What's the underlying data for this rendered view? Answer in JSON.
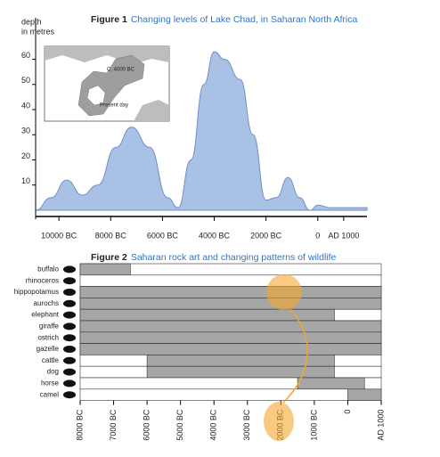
{
  "chart_data": [
    {
      "type": "area",
      "title_label": "Figure 1",
      "title": "Changing levels of Lake Chad, in Saharan North Africa",
      "ylabel": [
        "depth",
        "in metres"
      ],
      "annotations": [
        "C. 4000 BC",
        "Present day"
      ],
      "x": [
        -10900,
        -10300,
        -9700,
        -9100,
        -8500,
        -7800,
        -7200,
        -6500,
        -5800,
        -5400,
        -4900,
        -4400,
        -4000,
        -3600,
        -3000,
        -2500,
        -2000,
        -1600,
        -1150,
        -700,
        -300,
        0,
        500,
        1000,
        1900
      ],
      "values": [
        0,
        5,
        12,
        6,
        10,
        25,
        33,
        25,
        5,
        1,
        20,
        50,
        63,
        60,
        52,
        30,
        4,
        5,
        13,
        5,
        0,
        2,
        1,
        1,
        1
      ],
      "color": "#aac1e6",
      "line_color": "#6f8fc8",
      "xlim": [
        -10900,
        1900
      ],
      "xticks": [
        {
          "value": -10000,
          "label": "10000 BC"
        },
        {
          "value": -8000,
          "label": "8000 BC"
        },
        {
          "value": -6000,
          "label": "6000 BC"
        },
        {
          "value": -4000,
          "label": "4000 BC"
        },
        {
          "value": -2000,
          "label": "2000 BC"
        },
        0,
        {
          "value": 1000,
          "label": "AD 1000"
        }
      ],
      "ylim": [
        -2.5,
        68
      ],
      "yticks": [
        10,
        20,
        30,
        40,
        50,
        60
      ]
    },
    {
      "type": "range_bar",
      "title_label": "Figure 2",
      "title": "Saharan rock art and changing patterns of wildlife",
      "categories": [
        "buffalo",
        "rhinoceros",
        "hippopotamus",
        "aurochs",
        "elephant",
        "giraffe",
        "ostrich",
        "gazelle",
        "cattle",
        "dog",
        "horse",
        "camel"
      ],
      "starts": [
        -8000,
        null,
        -8000,
        -8000,
        -8000,
        -8000,
        -8000,
        -8000,
        -6000,
        -6000,
        -1500,
        0
      ],
      "ends": [
        -6500,
        null,
        1000,
        1000,
        -400,
        1000,
        1000,
        1000,
        -400,
        -400,
        500,
        1000
      ],
      "color": "#a6a6a6",
      "xlim": [
        -8000,
        1000
      ],
      "xticks": [
        {
          "value": -8000,
          "label": "8000 BC"
        },
        {
          "value": -7000,
          "label": "7000 BC"
        },
        {
          "value": -6000,
          "label": "6000 BC"
        },
        {
          "value": -5000,
          "label": "5000 BC"
        },
        {
          "value": -4000,
          "label": "4000 BC"
        },
        {
          "value": -3000,
          "label": "3000 BC"
        },
        {
          "value": -2000,
          "label": "2000 BC"
        },
        {
          "value": -1000,
          "label": "1000 BC"
        },
        0,
        {
          "value": 1000,
          "label": "AD 1000"
        }
      ]
    }
  ]
}
